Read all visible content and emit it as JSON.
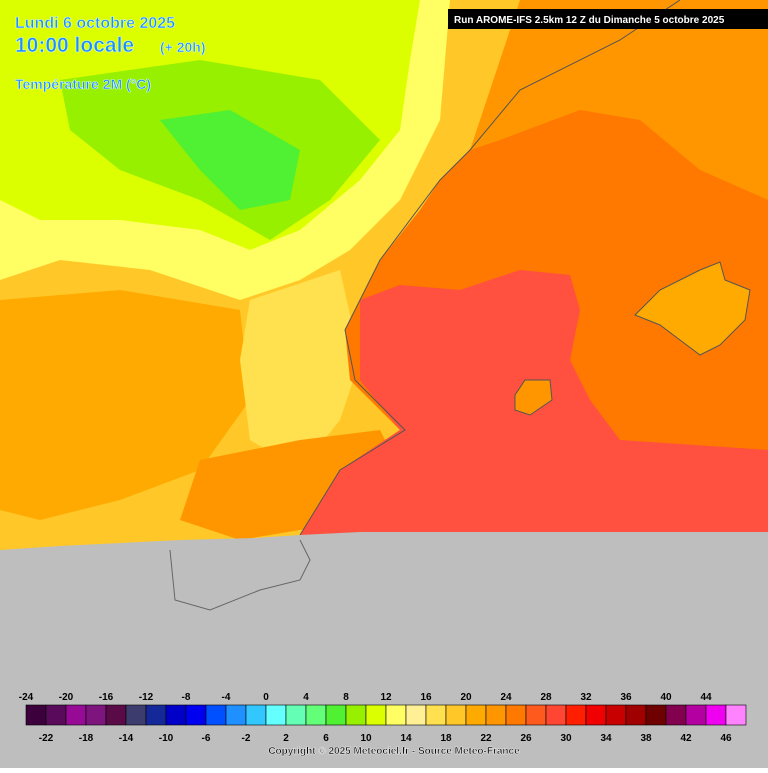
{
  "header": {
    "date": "Lundi 6 octobre 2025",
    "time": "10:00 locale",
    "lead": "(+ 20h)",
    "field": "Température 2M (°C)",
    "run": "Run AROME-IFS 2.5km 12 Z du Dimanche 5 octobre 2025"
  },
  "legend": {
    "values": [
      -24,
      -22,
      -20,
      -18,
      -16,
      -14,
      -12,
      -10,
      -8,
      -6,
      -4,
      -2,
      0,
      2,
      4,
      6,
      8,
      10,
      12,
      14,
      16,
      18,
      20,
      22,
      24,
      26,
      28,
      30,
      32,
      34,
      36,
      38,
      40,
      42,
      44,
      46
    ],
    "colors": [
      "#3c003c",
      "#5a0a5a",
      "#960a96",
      "#7e147e",
      "#5a0a46",
      "#3c3c6e",
      "#14289a",
      "#0000c8",
      "#0000f0",
      "#0050ff",
      "#1e90ff",
      "#32c8ff",
      "#64ffff",
      "#64ffb4",
      "#64ff78",
      "#50f032",
      "#96f000",
      "#dcff00",
      "#ffff64",
      "#fff096",
      "#ffe150",
      "#ffc828",
      "#ffaa00",
      "#ff9600",
      "#ff7800",
      "#ff5a1e",
      "#ff4632",
      "#ff1e00",
      "#f00000",
      "#c80000",
      "#a00000",
      "#6e0000",
      "#82004e",
      "#b400a0",
      "#f000f0",
      "#ff82ff"
    ]
  },
  "footer": {
    "copyright": "Copyright © 2025 Meteociel.fr - Source Meteo-France"
  }
}
